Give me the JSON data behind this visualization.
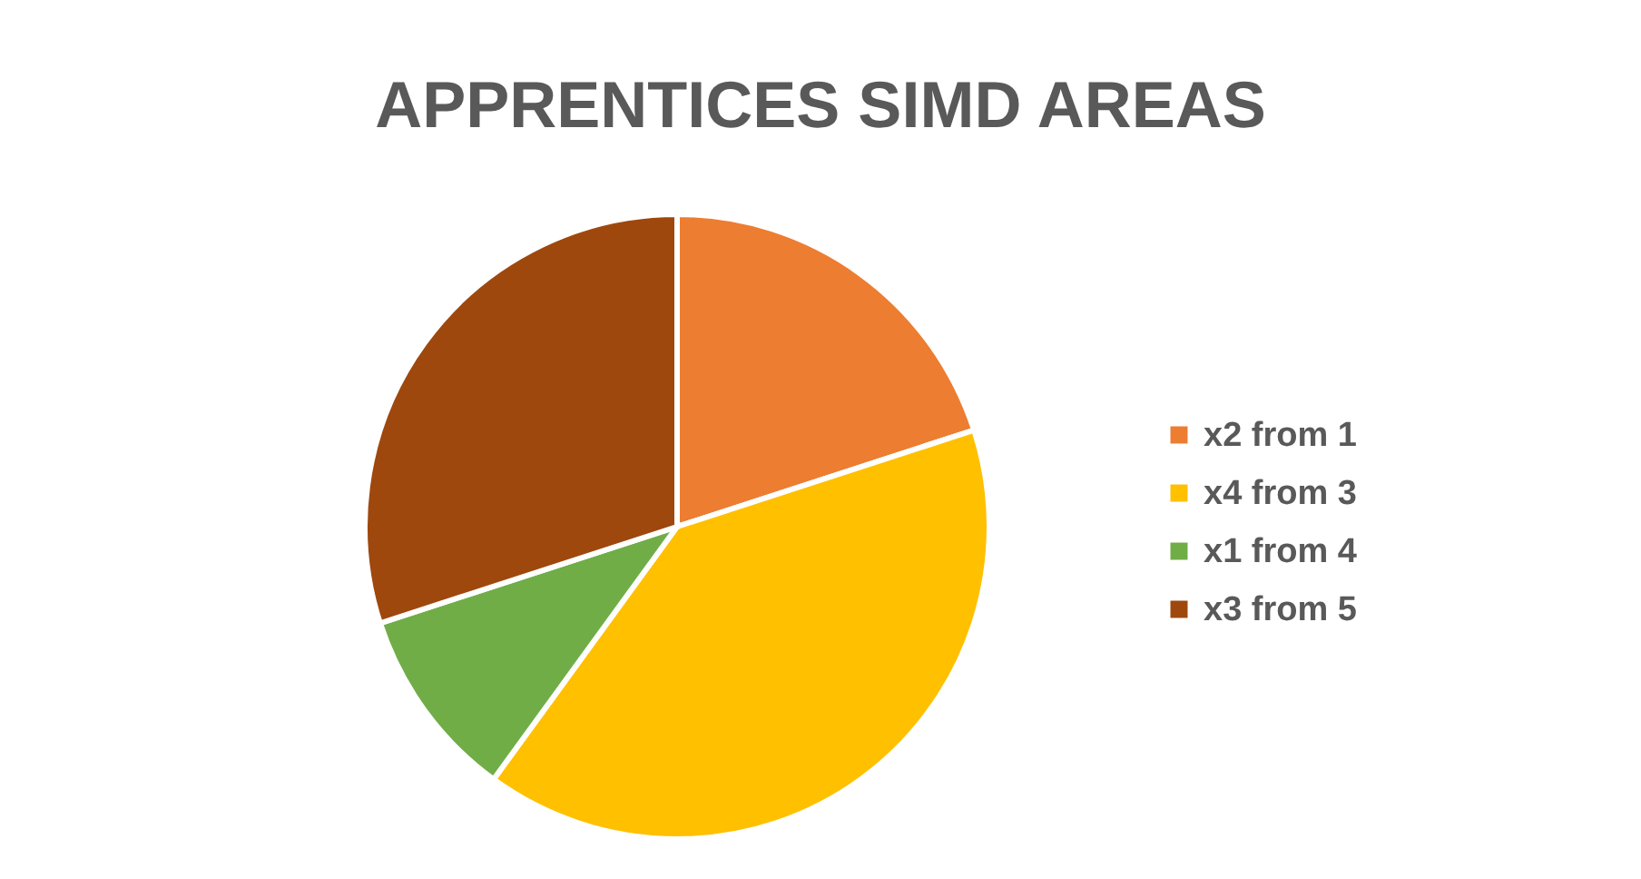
{
  "chart_data": {
    "type": "pie",
    "title": "APPRENTICES SIMD AREAS",
    "categories": [
      "x2 from 1",
      "x4 from 3",
      "x1 from 4",
      "x3 from 5"
    ],
    "values": [
      20,
      40,
      10,
      30
    ],
    "colors": [
      "#ed7d31",
      "#ffc000",
      "#70ad47",
      "#9e480e"
    ],
    "legend": "right"
  }
}
